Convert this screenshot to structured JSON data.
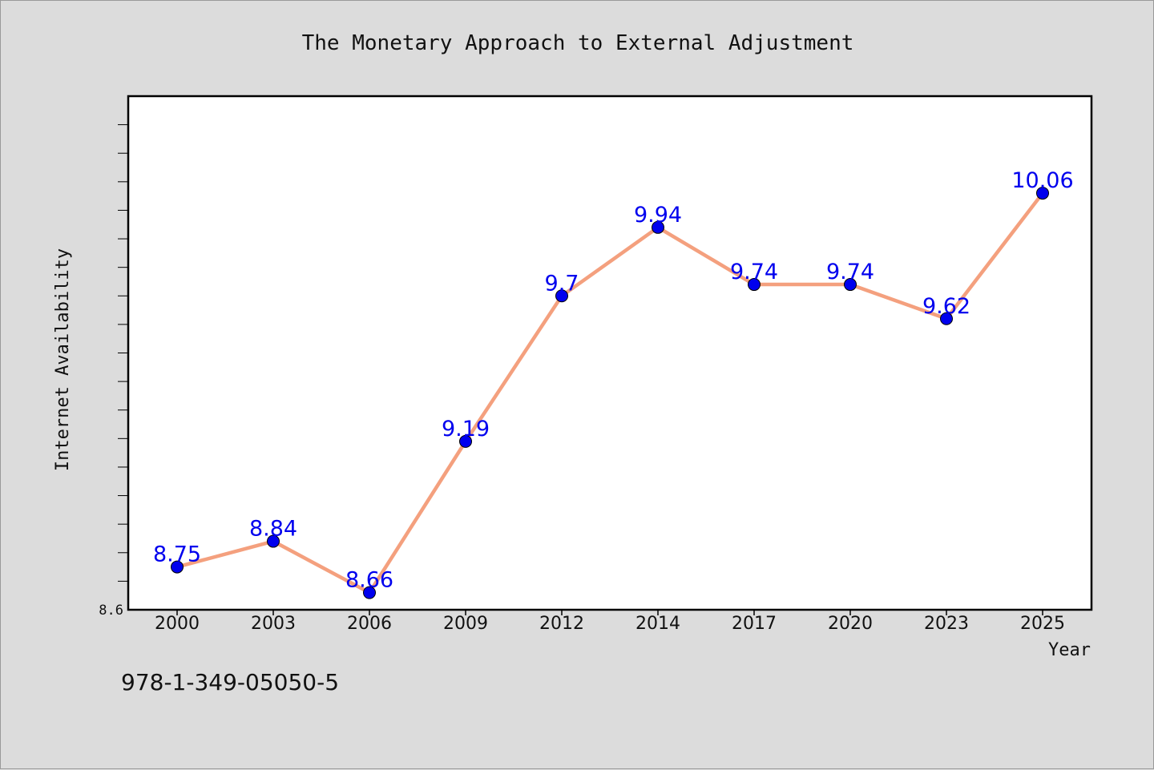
{
  "chart_data": {
    "type": "line",
    "title": "The Monetary Approach to External Adjustment",
    "xlabel": "Year",
    "ylabel": "Internet Availability",
    "categories": [
      "2000",
      "2003",
      "2006",
      "2009",
      "2012",
      "2014",
      "2017",
      "2020",
      "2023",
      "2025"
    ],
    "series": [
      {
        "values": [
          8.75,
          8.84,
          8.66,
          9.19,
          9.7,
          9.94,
          9.74,
          9.74,
          9.62,
          10.06
        ]
      }
    ],
    "data_labels": [
      "8.75",
      "8.84",
      "8.66",
      "9.19",
      "9.7",
      "9.94",
      "9.74",
      "9.74",
      "9.62",
      "10.06"
    ],
    "y_tick_labels": [
      "8.6"
    ],
    "ylim": [
      8.6,
      10.4
    ],
    "y_minor_step": 0.1,
    "grid": false,
    "line_color": "#f4a07e",
    "marker_color": "#0000ee",
    "label_color": "#0000ee"
  },
  "footer": {
    "isbn": "978-1-349-05050-5"
  }
}
